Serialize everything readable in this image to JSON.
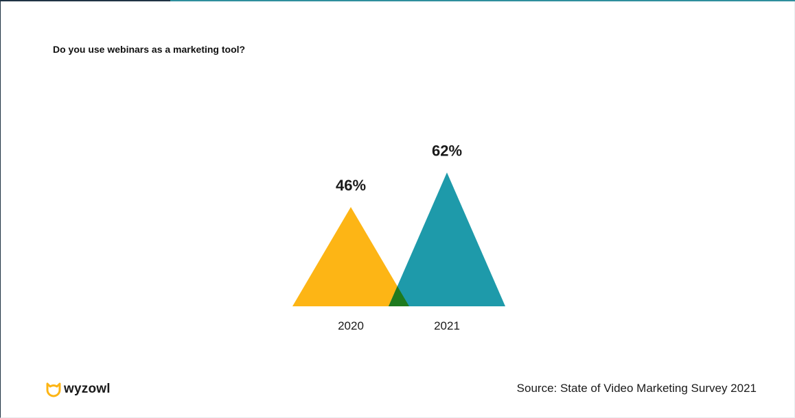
{
  "question": "Do you use webinars as a marketing tool?",
  "source": "Source: State of Video Marketing Survey 2021",
  "brand": {
    "name": "wyzowl",
    "logo_color": "#FDB515"
  },
  "chart_data": {
    "type": "area",
    "categories": [
      "2020",
      "2021"
    ],
    "values": [
      46,
      62
    ],
    "data_labels": [
      "46%",
      "62%"
    ],
    "colors": [
      "#FDB515",
      "#1E9AAA"
    ],
    "overlap_color": "#1E7A1E",
    "unit": "%"
  }
}
